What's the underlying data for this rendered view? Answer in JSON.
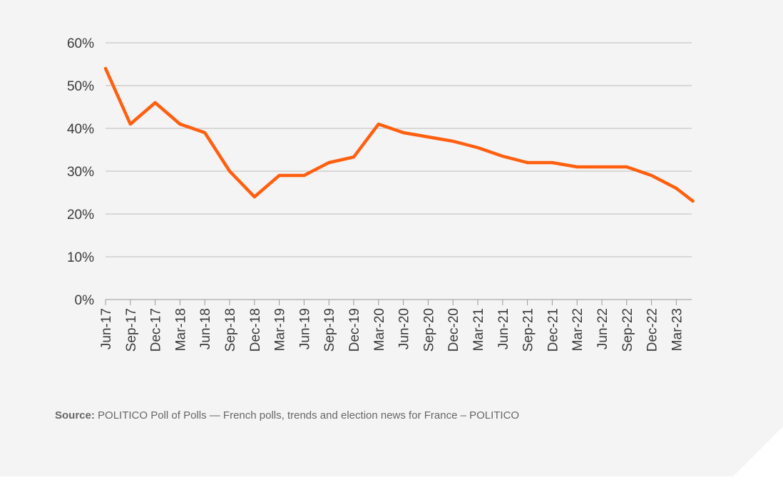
{
  "chart_data": {
    "type": "line",
    "title": "",
    "xlabel": "",
    "ylabel": "",
    "ylim": [
      0,
      60
    ],
    "yticks": [
      "0%",
      "10%",
      "20%",
      "30%",
      "40%",
      "50%",
      "60%"
    ],
    "ytick_values": [
      0,
      10,
      20,
      30,
      40,
      50,
      60
    ],
    "xticks": [
      "Jun-17",
      "Sep-17",
      "Dec-17",
      "Mar-18",
      "Jun-18",
      "Sep-18",
      "Dec-18",
      "Mar-19",
      "Jun-19",
      "Sep-19",
      "Dec-19",
      "Mar-20",
      "Jun-20",
      "Sep-20",
      "Dec-20",
      "Mar-21",
      "Jun-21",
      "Sep-21",
      "Dec-21",
      "Mar-22",
      "Jun-22",
      "Sep-22",
      "Dec-22",
      "Mar-23"
    ],
    "grid": true,
    "line_color": "#ff5f0f",
    "series": [
      {
        "points": [
          {
            "x": "2017-06",
            "y": 54
          },
          {
            "x": "2017-09",
            "y": 41
          },
          {
            "x": "2017-12",
            "y": 46
          },
          {
            "x": "2018-03",
            "y": 41
          },
          {
            "x": "2018-06",
            "y": 39
          },
          {
            "x": "2018-09",
            "y": 30
          },
          {
            "x": "2018-12",
            "y": 24
          },
          {
            "x": "2019-03",
            "y": 29
          },
          {
            "x": "2019-06",
            "y": 29
          },
          {
            "x": "2019-09",
            "y": 32
          },
          {
            "x": "2019-12",
            "y": 33.3
          },
          {
            "x": "2020-03",
            "y": 41
          },
          {
            "x": "2020-06",
            "y": 39
          },
          {
            "x": "2020-09",
            "y": 38
          },
          {
            "x": "2020-12",
            "y": 37
          },
          {
            "x": "2021-03",
            "y": 35.5
          },
          {
            "x": "2021-06",
            "y": 33.5
          },
          {
            "x": "2021-09",
            "y": 32
          },
          {
            "x": "2021-12",
            "y": 32
          },
          {
            "x": "2022-03",
            "y": 31
          },
          {
            "x": "2022-06",
            "y": 31
          },
          {
            "x": "2022-09",
            "y": 31
          },
          {
            "x": "2022-12",
            "y": 29
          },
          {
            "x": "2023-03",
            "y": 26
          },
          {
            "x": "2023-05",
            "y": 23
          }
        ]
      }
    ]
  },
  "source": {
    "label": "Source:",
    "text": "POLITICO Poll of Polls — French polls, trends and election news for France – POLITICO"
  }
}
